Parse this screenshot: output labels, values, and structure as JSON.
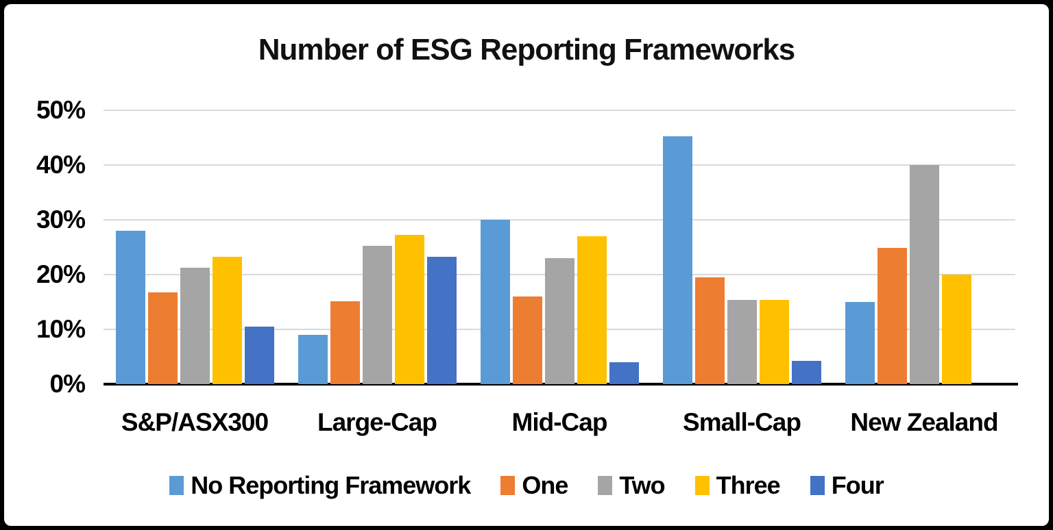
{
  "chart_data": {
    "type": "bar",
    "title": "Number of ESG Reporting Frameworks",
    "categories": [
      "S&P/ASX300",
      "Large-Cap",
      "Mid-Cap",
      "Small-Cap",
      "New Zealand"
    ],
    "series": [
      {
        "name": "No Reporting Framework",
        "color": "#5B9BD5",
        "values": [
          28,
          9,
          30,
          45.3,
          15
        ]
      },
      {
        "name": "One",
        "color": "#ED7D31",
        "values": [
          16.8,
          15.1,
          16,
          19.5,
          24.9
        ]
      },
      {
        "name": "Two",
        "color": "#A5A5A5",
        "values": [
          21.2,
          25.3,
          23,
          15.4,
          40
        ]
      },
      {
        "name": "Three",
        "color": "#FFC000",
        "values": [
          23.3,
          27.2,
          27,
          15.4,
          20
        ]
      },
      {
        "name": "Four",
        "color": "#4472C4",
        "values": [
          10.5,
          23.2,
          4,
          4.2,
          null
        ]
      }
    ],
    "ylim": [
      0,
      50
    ],
    "ytick_step": 10,
    "ytick_labels": [
      "0%",
      "10%",
      "20%",
      "30%",
      "40%",
      "50%"
    ],
    "xlabel": "",
    "ylabel": "",
    "grid": true,
    "gridline_color": "#D9D9D9",
    "axis_color": "#000000",
    "legend_position": "bottom"
  }
}
